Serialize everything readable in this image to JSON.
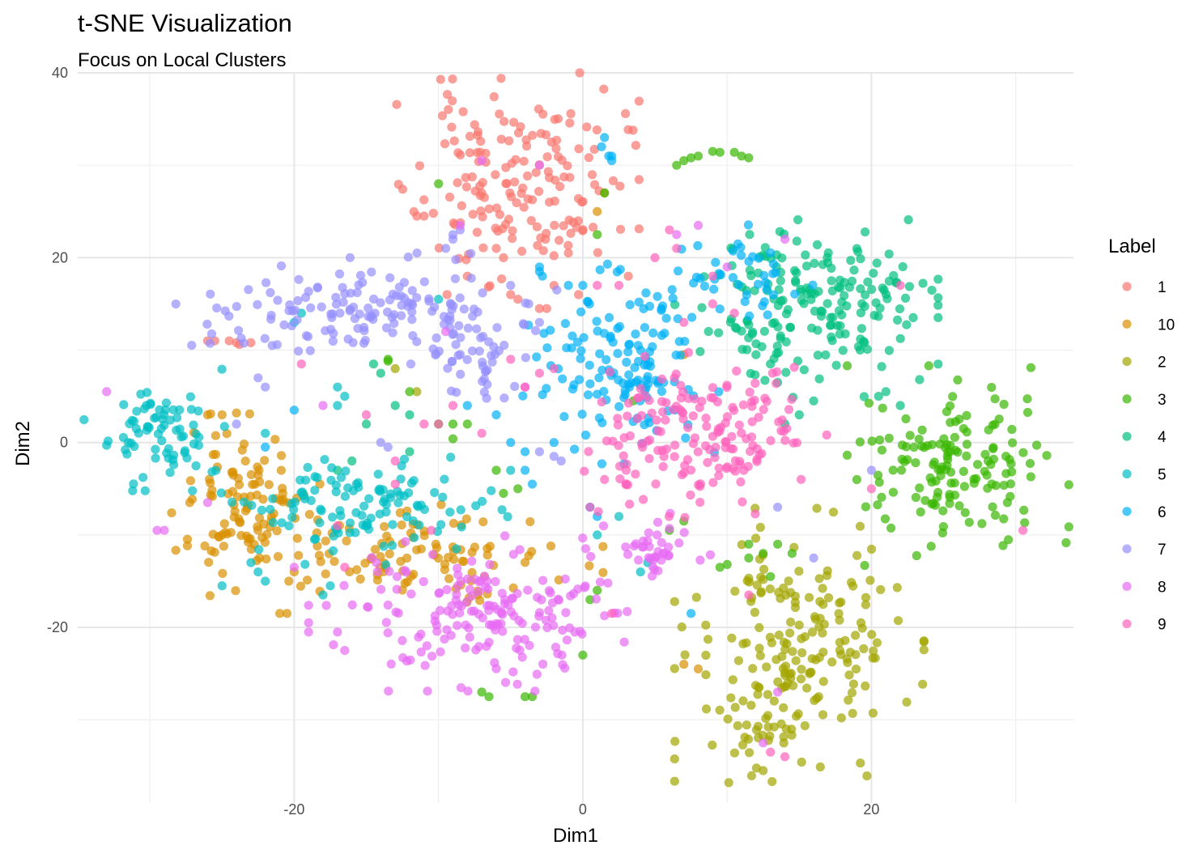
{
  "chart_data": {
    "type": "scatter",
    "title": "t-SNE Visualization",
    "subtitle": "Focus on Local Clusters",
    "xlabel": "Dim1",
    "ylabel": "Dim2",
    "xlim": [
      -35,
      34
    ],
    "ylim": [
      -39,
      40
    ],
    "x_ticks": [
      -20,
      0,
      20
    ],
    "y_ticks": [
      -20,
      0,
      20,
      40
    ],
    "grid": true,
    "legend_title": "Label",
    "legend_position": "right",
    "series": [
      {
        "name": "1",
        "color": "#F8766D",
        "clusters": [
          {
            "cx": -4.5,
            "cy": 28,
            "sx": 3.5,
            "sy": 5,
            "n": 170,
            "seed": 11
          }
        ],
        "points": [
          [
            -26,
            11
          ],
          [
            -25.5,
            11
          ],
          [
            -24.5,
            11
          ],
          [
            -24,
            10.8
          ],
          [
            -23.8,
            10.6
          ],
          [
            -23,
            10.8
          ],
          [
            -11,
            24.5
          ],
          [
            -11.5,
            24.5
          ],
          [
            -8,
            18
          ],
          [
            -5,
            16
          ],
          [
            -4.5,
            15.5
          ],
          [
            -3,
            14.5
          ],
          [
            -2.5,
            14.5
          ],
          [
            -2,
            17
          ],
          [
            -1,
            20.5
          ],
          [
            -5.5,
            20
          ],
          [
            -6,
            21
          ]
        ]
      },
      {
        "name": "10",
        "color": "#D89000",
        "clusters": [
          {
            "cx": -23.5,
            "cy": -6.5,
            "sx": 2.2,
            "sy": 4,
            "n": 100,
            "seed": 21
          },
          {
            "cx": -13,
            "cy": -12,
            "sx": 6,
            "sy": 2.2,
            "n": 110,
            "seed": 22
          }
        ],
        "points": [
          [
            -20.5,
            -18.5
          ],
          [
            -21,
            -18.5
          ],
          [
            -25,
            3
          ],
          [
            -24,
            3.2
          ],
          [
            -26,
            3
          ],
          [
            7,
            -24
          ],
          [
            8,
            -24.5
          ],
          [
            1,
            25
          ],
          [
            1.5,
            27
          ],
          [
            7,
            9.5
          ],
          [
            -20,
            -14
          ],
          [
            -25,
            -10
          ]
        ]
      },
      {
        "name": "2",
        "color": "#A3A500",
        "clusters": [
          {
            "cx": 15,
            "cy": -22,
            "sx": 3.6,
            "sy": 6.2,
            "n": 190,
            "seed": 31
          },
          {
            "cx": 12,
            "cy": -32,
            "sx": 1.8,
            "sy": 2,
            "n": 20,
            "seed": 32
          }
        ],
        "points": [
          [
            12.5,
            -35.5
          ],
          [
            -11.5,
            5.5
          ],
          [
            -13,
            8
          ]
        ]
      },
      {
        "name": "3",
        "color": "#39B600",
        "clusters": [
          {
            "cx": 26,
            "cy": -2.5,
            "sx": 3.2,
            "sy": 4.5,
            "n": 150,
            "seed": 41
          }
        ],
        "points": [
          [
            7,
            30.5
          ],
          [
            6.5,
            30
          ],
          [
            7.5,
            30.8
          ],
          [
            8,
            31
          ],
          [
            9,
            31.5
          ],
          [
            9.5,
            31.4
          ],
          [
            10.5,
            31.4
          ],
          [
            11,
            31
          ],
          [
            11.5,
            30.8
          ],
          [
            1.5,
            27
          ],
          [
            -10,
            28
          ],
          [
            -13.5,
            9
          ],
          [
            -13.5,
            8.8
          ],
          [
            -12,
            5.5
          ],
          [
            -10,
            2
          ],
          [
            -9,
            2
          ],
          [
            -9,
            0.4
          ],
          [
            -8,
            2
          ],
          [
            -4.5,
            -5
          ],
          [
            -7,
            -27
          ],
          [
            -6.5,
            -27.5
          ],
          [
            -4,
            -27.5
          ],
          [
            -3.5,
            -27.5
          ],
          [
            0,
            -23
          ],
          [
            1,
            -16
          ],
          [
            0.5,
            -17
          ],
          [
            6,
            -9.5
          ],
          [
            7,
            -8.5
          ],
          [
            9.5,
            -13.5
          ],
          [
            10,
            -13.2
          ],
          [
            11.5,
            -11
          ],
          [
            13.5,
            -11
          ],
          [
            12.5,
            -12
          ],
          [
            14.5,
            -12
          ],
          [
            13,
            -14.5
          ],
          [
            11.5,
            -12.5
          ],
          [
            3.5,
            4.5
          ],
          [
            1,
            22.5
          ],
          [
            -5.5,
            -5.5
          ],
          [
            -6,
            -3
          ]
        ]
      },
      {
        "name": "4",
        "color": "#00BF7D",
        "clusters": [
          {
            "cx": 15.5,
            "cy": 14.5,
            "sx": 3.8,
            "sy": 4,
            "n": 190,
            "seed": 51
          }
        ],
        "points": [
          [
            21,
            5.5
          ],
          [
            20.5,
            5
          ],
          [
            22,
            4
          ],
          [
            12,
            9.5
          ],
          [
            13,
            8.5
          ],
          [
            13.5,
            6.5
          ],
          [
            16,
            4.5
          ],
          [
            15,
            3
          ],
          [
            14,
            2
          ],
          [
            -14,
            7.5
          ],
          [
            -14.5,
            8.5
          ],
          [
            -12,
            -1
          ],
          [
            -17,
            -3
          ],
          [
            -16,
            -2
          ],
          [
            -15,
            2
          ],
          [
            -12,
            3
          ],
          [
            -13,
            4
          ]
        ]
      },
      {
        "name": "5",
        "color": "#00BFC4",
        "clusters": [
          {
            "cx": -29.5,
            "cy": 1.5,
            "sx": 2.5,
            "sy": 2.8,
            "n": 75,
            "seed": 61
          },
          {
            "cx": -15,
            "cy": -7,
            "sx": 4.8,
            "sy": 2.6,
            "n": 115,
            "seed": 62
          }
        ],
        "points": [
          [
            -33,
            -0.3
          ],
          [
            -23,
            -13
          ],
          [
            -22.5,
            -14
          ],
          [
            -22,
            -15
          ],
          [
            -25,
            -15.5
          ],
          [
            -18,
            -16.5
          ],
          [
            -17.5,
            -15.5
          ],
          [
            -20,
            13
          ],
          [
            -19.5,
            14
          ],
          [
            -17,
            6
          ],
          [
            -16.5,
            5
          ],
          [
            -17,
            4
          ],
          [
            -5,
            -3
          ],
          [
            -10,
            15.5
          ],
          [
            1,
            -10
          ],
          [
            2.5,
            -8
          ],
          [
            4,
            -14
          ],
          [
            4.5,
            -13
          ],
          [
            -22,
            1
          ]
        ]
      },
      {
        "name": "6",
        "color": "#00B0F6",
        "clusters": [
          {
            "cx": 2.5,
            "cy": 8.5,
            "sx": 3,
            "sy": 4.5,
            "n": 135,
            "seed": 71
          },
          {
            "cx": 10,
            "cy": 17,
            "sx": 3,
            "sy": 3,
            "n": 45,
            "seed": 72
          }
        ],
        "points": [
          [
            1.5,
            33
          ],
          [
            1.3,
            32
          ],
          [
            1.8,
            31
          ],
          [
            2,
            30.5
          ],
          [
            2,
            31
          ],
          [
            -3,
            19
          ],
          [
            -3,
            18.5
          ],
          [
            -2.8,
            18
          ],
          [
            -4,
            -3
          ],
          [
            -5,
            0
          ],
          [
            -4,
            -1
          ],
          [
            -2,
            0
          ],
          [
            1,
            -8
          ],
          [
            0.5,
            -7
          ],
          [
            -3.5,
            -4.5
          ],
          [
            -8,
            4
          ],
          [
            -6,
            3
          ],
          [
            7.5,
            -18.5
          ],
          [
            -1,
            17
          ],
          [
            0,
            17
          ],
          [
            -20,
            3.5
          ],
          [
            -22,
            -0.5
          ]
        ]
      },
      {
        "name": "7",
        "color": "#9590FF",
        "clusters": [
          {
            "cx": -15,
            "cy": 14.5,
            "sx": 5.5,
            "sy": 2.5,
            "n": 150,
            "seed": 81
          },
          {
            "cx": -7.5,
            "cy": 9.5,
            "sx": 2,
            "sy": 2.5,
            "n": 40,
            "seed": 82
          }
        ],
        "points": [
          [
            -9.5,
            21
          ],
          [
            -9,
            22
          ],
          [
            -8.5,
            23
          ],
          [
            -22,
            6
          ],
          [
            -22.5,
            7
          ],
          [
            -24,
            2
          ],
          [
            -9,
            22.5
          ],
          [
            -5,
            17
          ],
          [
            -3,
            13
          ],
          [
            13.5,
            -7
          ],
          [
            -3,
            -1
          ],
          [
            -2,
            -1.5
          ],
          [
            -1.5,
            -2
          ],
          [
            20,
            -3
          ],
          [
            16,
            -12.5
          ],
          [
            -14,
            0
          ],
          [
            -13.5,
            -0.5
          ]
        ]
      },
      {
        "name": "8",
        "color": "#E76BF3",
        "clusters": [
          {
            "cx": -7,
            "cy": -18.5,
            "sx": 5,
            "sy": 3.5,
            "n": 180,
            "seed": 91
          },
          {
            "cx": 5,
            "cy": -11.5,
            "sx": 2,
            "sy": 1.6,
            "n": 40,
            "seed": 92
          }
        ],
        "points": [
          [
            -33,
            5.5
          ],
          [
            -29.5,
            -9.5
          ],
          [
            -29,
            -9.5
          ],
          [
            -26,
            -6.5
          ],
          [
            -20,
            -13.5
          ],
          [
            -19,
            -20.5
          ],
          [
            -17,
            -20.5
          ],
          [
            -16.5,
            -22.5
          ],
          [
            -3,
            30
          ],
          [
            -7,
            30.5
          ],
          [
            -8.5,
            23.5
          ],
          [
            10,
            19
          ],
          [
            8,
            23.5
          ],
          [
            6.5,
            22.5
          ],
          [
            14,
            22
          ],
          [
            13.5,
            -27
          ],
          [
            12.5,
            -32.5
          ],
          [
            -9.5,
            12
          ],
          [
            -18,
            4
          ],
          [
            -4,
            6
          ]
        ]
      },
      {
        "name": "9",
        "color": "#FF62BC",
        "clusters": [
          {
            "cx": 8.5,
            "cy": 1,
            "sx": 3.5,
            "sy": 3.8,
            "n": 170,
            "seed": 101
          }
        ],
        "points": [
          [
            -19.5,
            8.5
          ],
          [
            -17,
            -9
          ],
          [
            -16.5,
            -13.5
          ],
          [
            -15,
            3
          ],
          [
            -13,
            -2
          ],
          [
            -11,
            2
          ],
          [
            -10,
            2
          ],
          [
            -9,
            4
          ],
          [
            -5,
            9
          ],
          [
            -2,
            8
          ],
          [
            -3,
            7.5
          ],
          [
            -4,
            6
          ],
          [
            1,
            17
          ],
          [
            2.5,
            17
          ],
          [
            5,
            20
          ],
          [
            6.5,
            21
          ],
          [
            7,
            13
          ],
          [
            9,
            18
          ],
          [
            9,
            15
          ],
          [
            10.5,
            14
          ],
          [
            11.5,
            -16.5
          ],
          [
            14,
            -34
          ],
          [
            13,
            -33.5
          ],
          [
            20,
            -5
          ],
          [
            22,
            17
          ],
          [
            30.5,
            -9.5
          ],
          [
            3,
            -3
          ],
          [
            1.5,
            -4
          ],
          [
            -10.5,
            -9.5
          ],
          [
            2,
            -18.5
          ],
          [
            0.5,
            -7
          ],
          [
            -13,
            -4.5
          ],
          [
            -7,
            1
          ],
          [
            6,
            23
          ]
        ]
      }
    ]
  }
}
